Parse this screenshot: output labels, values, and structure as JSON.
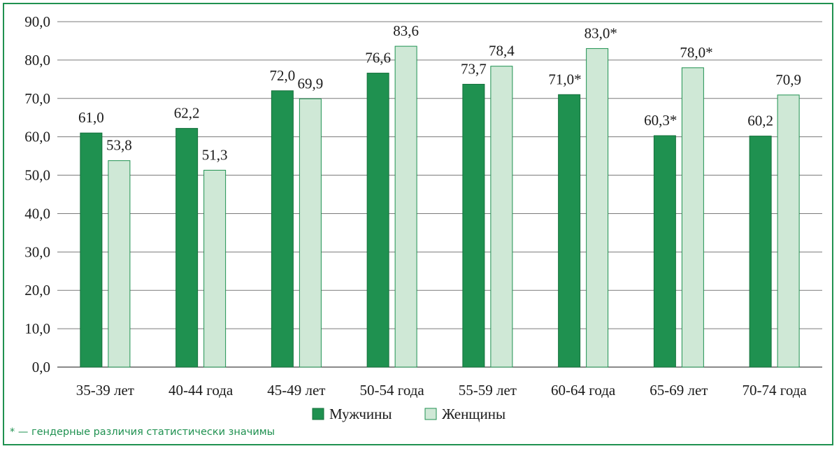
{
  "chart_data": {
    "type": "bar",
    "categories": [
      "35-39 лет",
      "40-44 года",
      "45-49 лет",
      "50-54 года",
      "55-59 лет",
      "60-64 года",
      "65-69 лет",
      "70-74 года"
    ],
    "series": [
      {
        "name": "Мужчины",
        "values": [
          61.0,
          62.2,
          72.0,
          76.6,
          73.7,
          71.0,
          60.3,
          60.2
        ],
        "labels": [
          "61,0",
          "62,2",
          "72,0",
          "76,6",
          "73,7",
          "71,0*",
          "60,3*",
          "60,2"
        ],
        "color": "#1f9150",
        "stroke": "#14703b"
      },
      {
        "name": "Женщины",
        "values": [
          53.8,
          51.3,
          69.9,
          83.6,
          78.4,
          83.0,
          78.0,
          70.9
        ],
        "labels": [
          "53,8",
          "51,3",
          "69,9",
          "83,6",
          "78,4",
          "83,0*",
          "78,0*",
          "70,9"
        ],
        "color": "#cfe8d6",
        "stroke": "#1f9150"
      }
    ],
    "ylim": [
      0,
      90
    ],
    "yticks": [
      "0,0",
      "10,0",
      "20,0",
      "30,0",
      "40,0",
      "50,0",
      "60,0",
      "70,0",
      "80,0",
      "90,0"
    ],
    "grid": true,
    "legend_position": "bottom",
    "xlabel": "",
    "ylabel": ""
  },
  "footnote": "* — гендерные различия статистически значимы"
}
